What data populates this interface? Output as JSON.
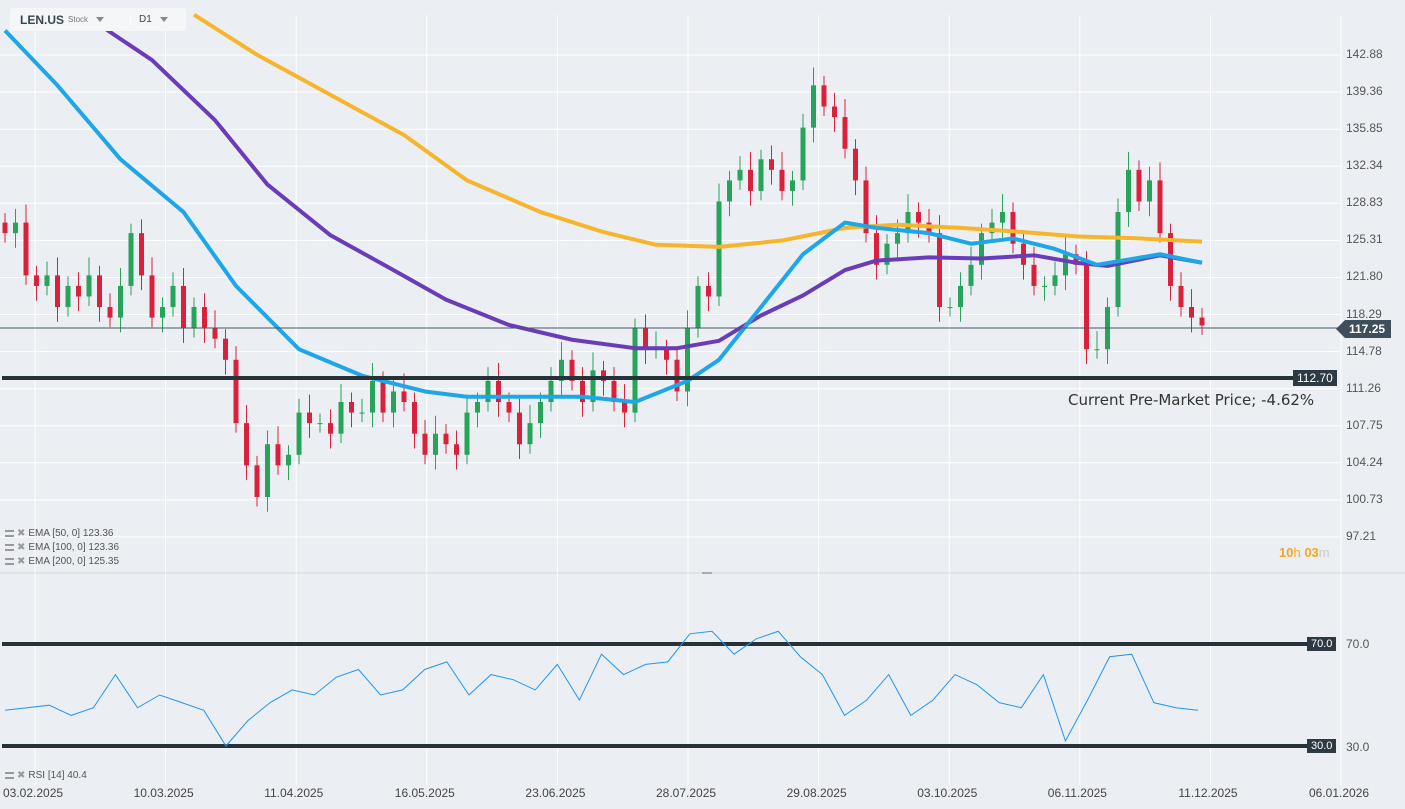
{
  "header": {
    "symbol": "LEN.US",
    "type": "Stock",
    "timeframe": "D1"
  },
  "indicators": [
    {
      "label": "EMA [50, 0] 123.36",
      "color": "#1ea7e8"
    },
    {
      "label": "EMA [100, 0] 123.36",
      "color": "#6a3cb8"
    },
    {
      "label": "EMA [200, 0] 125.35",
      "color": "#f7b52c"
    }
  ],
  "rsi_label": "RSI [14] 40.4",
  "price_axis": [
    "142.88",
    "139.36",
    "135.85",
    "132.34",
    "128.83",
    "125.31",
    "121.80",
    "118.29",
    "114.78",
    "111.26",
    "107.75",
    "104.24",
    "100.73",
    "97.21"
  ],
  "rsi_axis": [
    "70.0",
    "30.0"
  ],
  "rsi_levels": {
    "upper": "70.0",
    "lower": "30.0"
  },
  "current_price": "117.25",
  "support_level": "112.70",
  "annotation": "Current Pre-Market Price; -4.62%",
  "countdown": {
    "h": "10",
    "h_unit": "h",
    "m": "03",
    "m_unit": "m"
  },
  "date_axis": [
    "03.02.2025",
    "10.03.2025",
    "11.04.2025",
    "16.05.2025",
    "23.06.2025",
    "28.07.2025",
    "29.08.2025",
    "03.10.2025",
    "06.11.2025",
    "11.12.2025",
    "06.01.2026"
  ],
  "colors": {
    "up": "#27a35a",
    "down": "#d9213c",
    "ema50": "#1ea7e8",
    "ema100": "#6a3cb8",
    "ema200": "#f7b52c",
    "rsi": "#2196f3"
  },
  "chart_data": {
    "type": "candlestick",
    "ylim": [
      97.21,
      142.88
    ],
    "closes": [
      126,
      127,
      122,
      121,
      122,
      119,
      121,
      120,
      122,
      119,
      118,
      121,
      126,
      122,
      118,
      119,
      121,
      117,
      119,
      117,
      116,
      114,
      108,
      104,
      101,
      106,
      104,
      105,
      109,
      108,
      108,
      107,
      110,
      109,
      109,
      112,
      109,
      111,
      110,
      107,
      105,
      107,
      106,
      105,
      109,
      110,
      112,
      110,
      109,
      106,
      108,
      110,
      112,
      114,
      112,
      110,
      113,
      112,
      110,
      109,
      117,
      115,
      115,
      114,
      111,
      117,
      121,
      120,
      129,
      131,
      132,
      130,
      133,
      132,
      130,
      131,
      136,
      140,
      138,
      137,
      134,
      131,
      126,
      123,
      125,
      126,
      128,
      127,
      126,
      119,
      119,
      121,
      123,
      126,
      127,
      128,
      125,
      123,
      121,
      121,
      122,
      124,
      123,
      115,
      115,
      119,
      128,
      132,
      129,
      131,
      126,
      121,
      119,
      118,
      117.25
    ],
    "ema50": [
      [
        0,
        145.2
      ],
      [
        5,
        140
      ],
      [
        11,
        133
      ],
      [
        17,
        128
      ],
      [
        22,
        121
      ],
      [
        28,
        115
      ],
      [
        34,
        112.5
      ],
      [
        40,
        111
      ],
      [
        44,
        110.5
      ],
      [
        50,
        110.5
      ],
      [
        55,
        110.5
      ],
      [
        60,
        110
      ],
      [
        65,
        112
      ],
      [
        68,
        114
      ],
      [
        72,
        119
      ],
      [
        76,
        124
      ],
      [
        80,
        127
      ],
      [
        83,
        126.5
      ],
      [
        88,
        126
      ],
      [
        92,
        125
      ],
      [
        96,
        125.5
      ],
      [
        100,
        124.5
      ],
      [
        104,
        123
      ],
      [
        107,
        123.5
      ],
      [
        110,
        124
      ],
      [
        114,
        123.2
      ]
    ],
    "ema100": [
      [
        8,
        146.4
      ],
      [
        14,
        142.4
      ],
      [
        20,
        136.7
      ],
      [
        25,
        130.6
      ],
      [
        31,
        125.8
      ],
      [
        37,
        122.5
      ],
      [
        42,
        119.7
      ],
      [
        48,
        117.3
      ],
      [
        54,
        115.9
      ],
      [
        60,
        115.1
      ],
      [
        64,
        115.1
      ],
      [
        68,
        115.8
      ],
      [
        72,
        118.2
      ],
      [
        76,
        120.1
      ],
      [
        80,
        122.5
      ],
      [
        83,
        123.4
      ],
      [
        88,
        123.7
      ],
      [
        93,
        123.6
      ],
      [
        98,
        123.9
      ],
      [
        102,
        123.2
      ],
      [
        105,
        122.9
      ],
      [
        110,
        123.9
      ],
      [
        114,
        123.2
      ]
    ],
    "ema200": [
      [
        18,
        146.7
      ],
      [
        24,
        142.9
      ],
      [
        31,
        139.1
      ],
      [
        38,
        135.3
      ],
      [
        44,
        131
      ],
      [
        51,
        128
      ],
      [
        57,
        126.1
      ],
      [
        62,
        124.9
      ],
      [
        68,
        124.7
      ],
      [
        74,
        125.3
      ],
      [
        80,
        126.5
      ],
      [
        85,
        126.8
      ],
      [
        91,
        126.5
      ],
      [
        97,
        126.1
      ],
      [
        102,
        125.7
      ],
      [
        108,
        125.5
      ],
      [
        114,
        125.2
      ]
    ],
    "rsi": [
      44,
      45,
      46,
      42,
      45,
      58,
      45,
      50,
      47,
      44,
      30,
      40,
      47,
      52,
      50,
      57,
      60,
      50,
      52,
      60,
      63,
      50,
      58,
      56,
      52,
      62,
      48,
      66,
      58,
      62,
      63,
      74,
      75,
      66,
      72,
      75,
      65,
      58,
      42,
      48,
      58,
      42,
      48,
      58,
      54,
      47,
      45,
      58,
      32,
      48,
      65,
      66,
      47,
      45,
      44
    ],
    "rsi_ylim": [
      30,
      70
    ]
  }
}
